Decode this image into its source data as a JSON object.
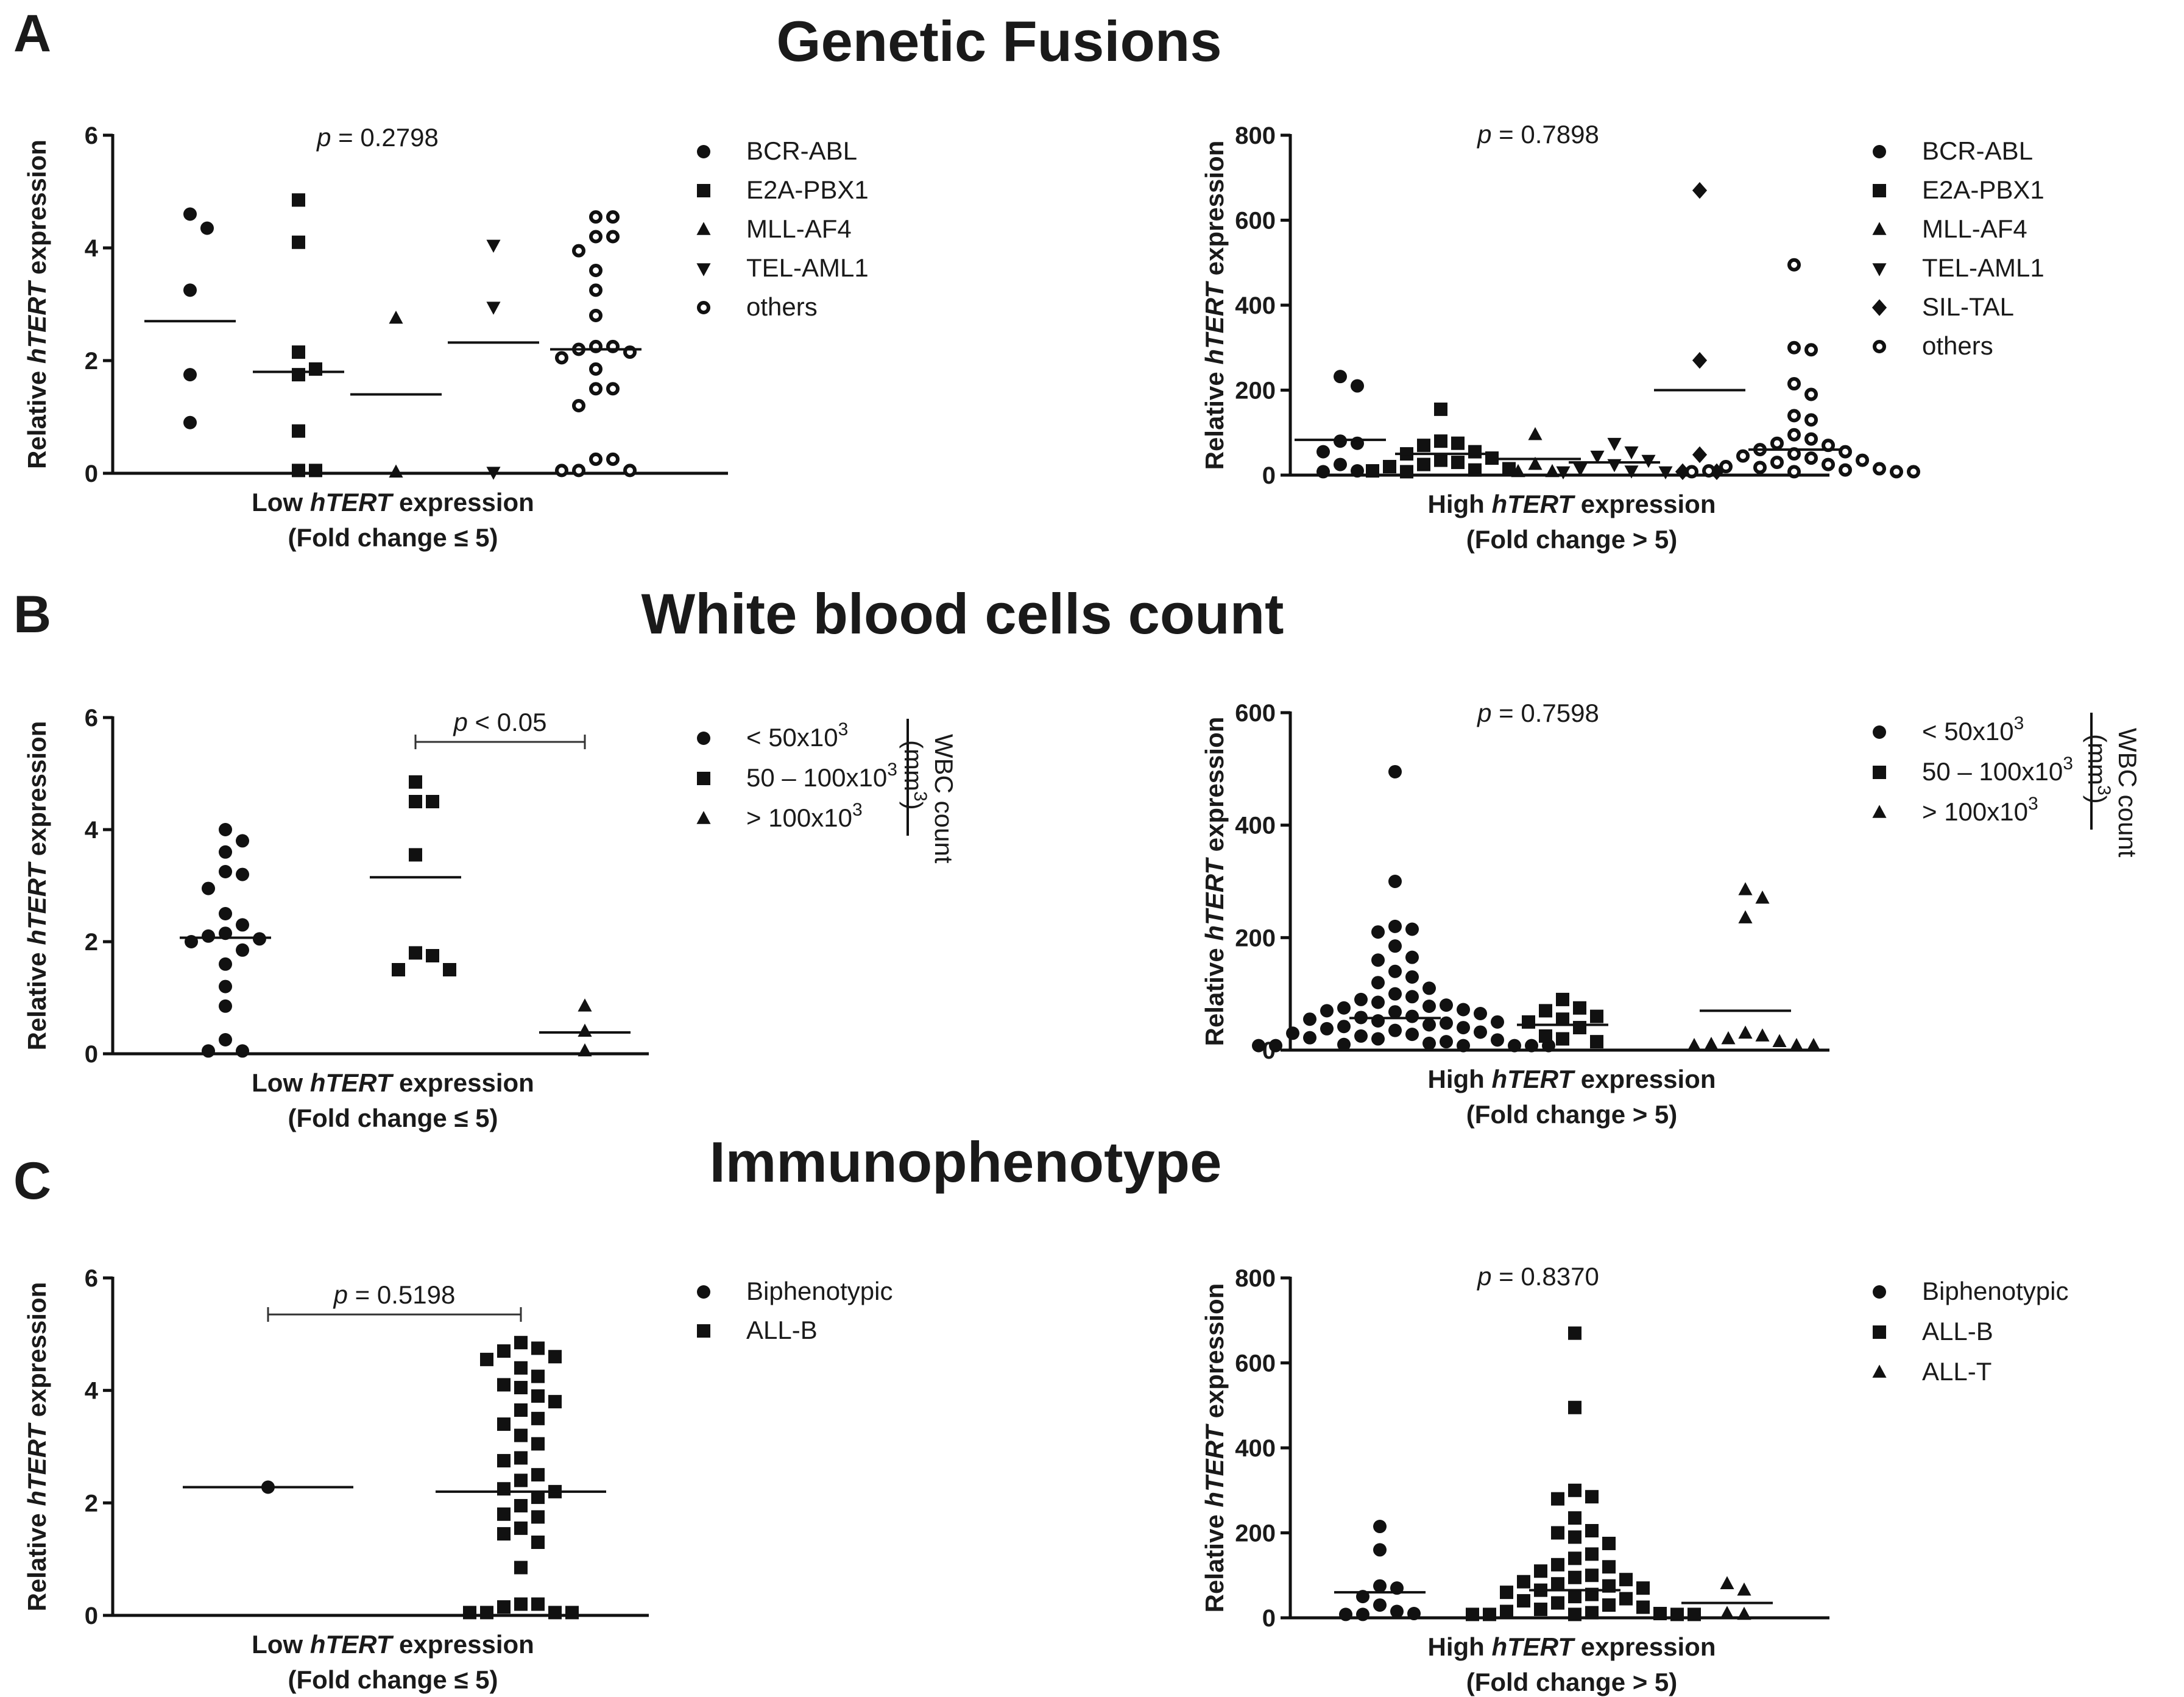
{
  "figure": {
    "sections": [
      {
        "label": "A",
        "title": "Genetic Fusions"
      },
      {
        "label": "B",
        "title": "White blood cells count"
      },
      {
        "label": "C",
        "title": "Immunophenotype"
      }
    ]
  },
  "chart_data": [
    {
      "id": "A-low",
      "type": "scatter",
      "section": "A",
      "ylabel": [
        "Relative ",
        "hTERT",
        " expression"
      ],
      "xlabel_line1": [
        "Low ",
        "hTERT",
        " expression"
      ],
      "xlabel_line2": "(Fold change ≤ 5)",
      "p_value": "p = 0.2798",
      "p_bracket": false,
      "ylim": [
        0,
        6
      ],
      "ticks": [
        0,
        2,
        4,
        6
      ],
      "legend": [
        {
          "marker": "circle",
          "label": "BCR-ABL"
        },
        {
          "marker": "square",
          "label": "E2A-PBX1"
        },
        {
          "marker": "triangle",
          "label": "MLL-AF4"
        },
        {
          "marker": "triangle-down",
          "label": "TEL-AML1"
        },
        {
          "marker": "circle-open",
          "label": "others"
        }
      ],
      "groups": [
        {
          "name": "BCR-ABL",
          "marker": "circle",
          "mean": 2.7,
          "values": [
            4.6,
            4.35,
            3.25,
            1.75,
            0.9
          ]
        },
        {
          "name": "E2A-PBX1",
          "marker": "square",
          "mean": 1.8,
          "values": [
            4.85,
            4.1,
            2.15,
            1.85,
            1.75,
            0.75,
            0.05,
            0.05
          ]
        },
        {
          "name": "MLL-AF4",
          "marker": "triangle",
          "mean": 1.4,
          "values": [
            2.75,
            0.02
          ]
        },
        {
          "name": "TEL-AML1",
          "marker": "triangle-down",
          "mean": 2.32,
          "values": [
            4.05,
            2.95,
            0.02
          ]
        },
        {
          "name": "others",
          "marker": "circle-open",
          "mean": 2.2,
          "values": [
            4.55,
            4.55,
            4.2,
            4.2,
            3.95,
            3.6,
            3.25,
            2.8,
            2.25,
            2.25,
            2.2,
            2.15,
            2.05,
            1.85,
            1.5,
            1.5,
            1.2,
            0.25,
            0.25,
            0.05,
            0.05,
            0.05
          ]
        }
      ]
    },
    {
      "id": "A-high",
      "type": "scatter",
      "section": "A",
      "ylabel": [
        "Relative ",
        "hTERT",
        " expression"
      ],
      "xlabel_line1": [
        "High ",
        "hTERT",
        " expression"
      ],
      "xlabel_line2": "(Fold change > 5)",
      "p_value": "p = 0.7898",
      "p_bracket": false,
      "ylim": [
        0,
        800
      ],
      "ticks": [
        0,
        200,
        400,
        600,
        800
      ],
      "legend": [
        {
          "marker": "circle",
          "label": "BCR-ABL"
        },
        {
          "marker": "square",
          "label": "E2A-PBX1"
        },
        {
          "marker": "triangle",
          "label": "MLL-AF4"
        },
        {
          "marker": "triangle-down",
          "label": "TEL-AML1"
        },
        {
          "marker": "diamond",
          "label": "SIL-TAL"
        },
        {
          "marker": "circle-open",
          "label": "others"
        }
      ],
      "groups": [
        {
          "name": "BCR-ABL",
          "marker": "circle",
          "mean": 83,
          "values": [
            232,
            210,
            80,
            75,
            55,
            25,
            10,
            8
          ]
        },
        {
          "name": "E2A-PBX1",
          "marker": "square",
          "mean": 50,
          "values": [
            155,
            80,
            75,
            70,
            55,
            50,
            40,
            35,
            30,
            25,
            20,
            15,
            12,
            10,
            8
          ]
        },
        {
          "name": "MLL-AF4",
          "marker": "triangle",
          "mean": 38,
          "values": [
            95,
            25,
            8,
            8
          ]
        },
        {
          "name": "TEL-AML1",
          "marker": "triangle-down",
          "mean": 30,
          "values": [
            75,
            55,
            45,
            35,
            25,
            15,
            10,
            8,
            8
          ]
        },
        {
          "name": "SIL-TAL",
          "marker": "diamond",
          "mean": 200,
          "values": [
            670,
            270,
            48,
            8,
            8
          ]
        },
        {
          "name": "others",
          "marker": "circle-open",
          "mean": 60,
          "values": [
            495,
            300,
            295,
            215,
            190,
            140,
            130,
            95,
            85,
            75,
            70,
            60,
            55,
            50,
            45,
            40,
            35,
            30,
            25,
            20,
            18,
            15,
            12,
            10,
            8,
            8,
            8,
            8
          ]
        }
      ]
    },
    {
      "id": "B-low",
      "type": "scatter",
      "section": "B",
      "ylabel": [
        "Relative ",
        "hTERT",
        " expression"
      ],
      "xlabel_line1": [
        "Low ",
        "hTERT",
        " expression"
      ],
      "xlabel_line2": "(Fold change ≤ 5)",
      "p_value": "p < 0.05",
      "p_bracket": true,
      "bracket_groups": [
        1,
        2
      ],
      "ylim": [
        0,
        6
      ],
      "ticks": [
        0,
        2,
        4,
        6
      ],
      "legend": [
        {
          "marker": "circle",
          "label": "< 50x10",
          "sup": "3"
        },
        {
          "marker": "square",
          "label": "50 – 100x10",
          "sup": "3"
        },
        {
          "marker": "triangle",
          "label": "> 100x10",
          "sup": "3"
        }
      ],
      "legend_side": [
        "WBC count",
        "(mm",
        "3",
        ")"
      ],
      "groups": [
        {
          "name": "< 50x10^3",
          "marker": "circle",
          "mean": 2.07,
          "values": [
            4.0,
            3.8,
            3.6,
            3.25,
            3.2,
            2.95,
            2.5,
            2.3,
            2.15,
            2.1,
            2.05,
            2.0,
            1.85,
            1.6,
            1.2,
            0.85,
            0.25,
            0.05,
            0.05
          ]
        },
        {
          "name": "50 – 100x10^3",
          "marker": "square",
          "mean": 3.15,
          "values": [
            4.85,
            4.5,
            4.5,
            3.55,
            1.8,
            1.75,
            1.5,
            1.5
          ]
        },
        {
          "name": "> 100x10^3",
          "marker": "triangle",
          "mean": 0.38,
          "values": [
            0.85,
            0.4,
            0.05
          ]
        }
      ]
    },
    {
      "id": "B-high",
      "type": "scatter",
      "section": "B",
      "ylabel": [
        "Relative ",
        "hTERT",
        " expression"
      ],
      "xlabel_line1": [
        "High ",
        "hTERT",
        " expression"
      ],
      "xlabel_line2": "(Fold change > 5)",
      "p_value": "p = 0.7598",
      "p_bracket": false,
      "ylim": [
        0,
        600
      ],
      "ticks": [
        0,
        200,
        400,
        600
      ],
      "legend": [
        {
          "marker": "circle",
          "label": "< 50x10",
          "sup": "3"
        },
        {
          "marker": "square",
          "label": "50 – 100x10",
          "sup": "3"
        },
        {
          "marker": "triangle",
          "label": "> 100x10",
          "sup": "3"
        }
      ],
      "legend_side": [
        "WBC count",
        "(mm",
        "3",
        ")"
      ],
      "groups": [
        {
          "name": "< 50x10^3",
          "marker": "circle",
          "mean": 57,
          "values": [
            495,
            300,
            220,
            215,
            210,
            185,
            165,
            160,
            140,
            130,
            120,
            110,
            100,
            95,
            90,
            85,
            80,
            78,
            75,
            72,
            70,
            68,
            65,
            60,
            58,
            55,
            52,
            50,
            48,
            45,
            42,
            40,
            38,
            35,
            32,
            30,
            28,
            25,
            22,
            20,
            18,
            15,
            12,
            10,
            8,
            8,
            8,
            8,
            8,
            8
          ]
        },
        {
          "name": "50 – 100x10^3",
          "marker": "square",
          "mean": 45,
          "values": [
            90,
            75,
            70,
            60,
            55,
            50,
            40,
            25,
            20,
            15
          ]
        },
        {
          "name": "> 100x10^3",
          "marker": "triangle",
          "mean": 70,
          "values": [
            285,
            270,
            235,
            30,
            25,
            20,
            15,
            10,
            8,
            8,
            8
          ]
        }
      ]
    },
    {
      "id": "C-low",
      "type": "scatter",
      "section": "C",
      "ylabel": [
        "Relative ",
        "hTERT",
        " expression"
      ],
      "xlabel_line1": [
        "Low ",
        "hTERT",
        " expression"
      ],
      "xlabel_line2": "(Fold change ≤ 5)",
      "p_value": "p = 0.5198",
      "p_bracket": true,
      "bracket_groups": [
        0,
        1
      ],
      "ylim": [
        0,
        6
      ],
      "ticks": [
        0,
        2,
        4,
        6
      ],
      "legend": [
        {
          "marker": "circle",
          "label": "Biphenotypic"
        },
        {
          "marker": "square",
          "label": "ALL-B"
        }
      ],
      "groups": [
        {
          "name": "Biphenotypic",
          "marker": "circle",
          "mean": 2.28,
          "values": [
            2.28
          ]
        },
        {
          "name": "ALL-B",
          "marker": "square",
          "mean": 2.2,
          "values": [
            4.85,
            4.75,
            4.7,
            4.6,
            4.55,
            4.4,
            4.25,
            4.1,
            4.05,
            3.9,
            3.8,
            3.65,
            3.5,
            3.4,
            3.2,
            3.05,
            2.8,
            2.75,
            2.5,
            2.4,
            2.25,
            2.2,
            2.1,
            1.95,
            1.8,
            1.75,
            1.55,
            1.45,
            1.3,
            0.85,
            0.2,
            0.2,
            0.15,
            0.05,
            0.05,
            0.05,
            0.05
          ]
        }
      ]
    },
    {
      "id": "C-high",
      "type": "scatter",
      "section": "C",
      "ylabel": [
        "Relative ",
        "hTERT",
        " expression"
      ],
      "xlabel_line1": [
        "High ",
        "hTERT",
        " expression"
      ],
      "xlabel_line2": "(Fold change > 5)",
      "p_value": "p = 0.8370",
      "p_bracket": false,
      "ylim": [
        0,
        800
      ],
      "ticks": [
        0,
        200,
        400,
        600,
        800
      ],
      "legend": [
        {
          "marker": "circle",
          "label": "Biphenotypic"
        },
        {
          "marker": "square",
          "label": "ALL-B"
        },
        {
          "marker": "triangle",
          "label": "ALL-T"
        }
      ],
      "groups": [
        {
          "name": "Biphenotypic",
          "marker": "circle",
          "mean": 60,
          "values": [
            215,
            160,
            75,
            70,
            50,
            30,
            15,
            10,
            8,
            8
          ]
        },
        {
          "name": "ALL-B",
          "marker": "square",
          "mean": 65,
          "values": [
            670,
            495,
            300,
            285,
            280,
            235,
            205,
            200,
            190,
            175,
            150,
            140,
            125,
            120,
            110,
            100,
            95,
            90,
            85,
            80,
            75,
            70,
            65,
            60,
            55,
            50,
            45,
            40,
            35,
            30,
            25,
            20,
            15,
            12,
            10,
            8,
            8,
            8,
            8,
            8
          ]
        },
        {
          "name": "ALL-T",
          "marker": "triangle",
          "mean": 35,
          "values": [
            80,
            65,
            10,
            8
          ]
        }
      ]
    }
  ]
}
